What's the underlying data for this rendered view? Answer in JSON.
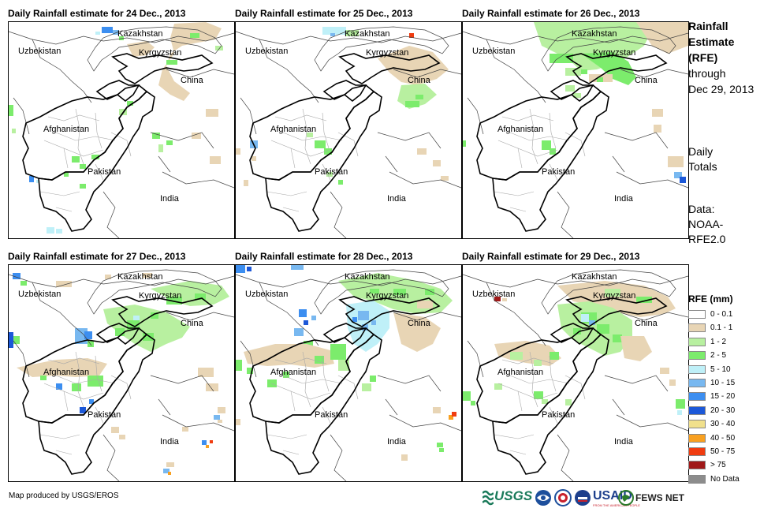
{
  "panels": [
    {
      "title": "Daily Rainfall estimate for 24 Dec., 2013"
    },
    {
      "title": "Daily Rainfall estimate for 25 Dec., 2013"
    },
    {
      "title": "Daily Rainfall estimate for 26 Dec., 2013"
    },
    {
      "title": "Daily Rainfall estimate for 27 Dec., 2013"
    },
    {
      "title": "Daily Rainfall estimate for 28 Dec., 2013"
    },
    {
      "title": "Daily Rainfall estimate for 29 Dec., 2013"
    }
  ],
  "map_labels": {
    "kazakhstan": "Kazakhstan",
    "uzbekistan": "Uzbekistan",
    "kyrgyzstan": "Kyrgyzstan",
    "china": "China",
    "afghanistan": "Afghanistan",
    "pakistan": "Pakistan",
    "india": "India"
  },
  "side": {
    "title_bold": [
      "Rainfall",
      "Estimate",
      "(RFE)"
    ],
    "title_normal": [
      "through",
      "Dec 29, 2013"
    ],
    "daily": [
      "Daily",
      "Totals"
    ],
    "data": [
      "Data:",
      "NOAA-",
      "RFE2.0"
    ]
  },
  "legend": {
    "title": "RFE (mm)",
    "items": [
      {
        "label": "0 - 0.1",
        "color": "#ffffff"
      },
      {
        "label": "0.1 - 1",
        "color": "#e8d5b5"
      },
      {
        "label": "1 - 2",
        "color": "#b8f0a0"
      },
      {
        "label": "2 - 5",
        "color": "#7cec6c"
      },
      {
        "label": "5 - 10",
        "color": "#bff0f8"
      },
      {
        "label": "10 - 15",
        "color": "#78b8f0"
      },
      {
        "label": "15 - 20",
        "color": "#3c8ef0"
      },
      {
        "label": "20 - 30",
        "color": "#1c58d8"
      },
      {
        "label": "30 - 40",
        "color": "#f0e08c"
      },
      {
        "label": "40 - 50",
        "color": "#f8a020"
      },
      {
        "label": "50 - 75",
        "color": "#f03c10"
      },
      {
        "label": "> 75",
        "color": "#a01818"
      },
      {
        "label": "No Data",
        "color": "#8c8c8c"
      }
    ]
  },
  "credit": "Map produced by USGS/EROS",
  "logos": {
    "usgs": "USGS",
    "usaid": "USAID",
    "usaid_sub": "FROM THE AMERICAN PEOPLE",
    "fewsnet": "FEWS NET"
  }
}
